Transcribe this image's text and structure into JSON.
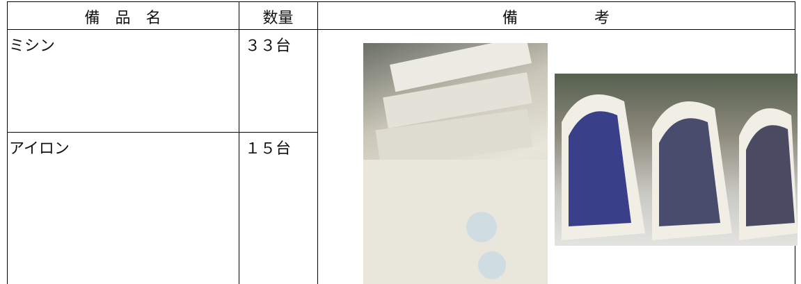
{
  "table": {
    "header": [
      "備　品　名",
      "数量",
      "備　　　　　考"
    ],
    "rows": [
      [
        "ミシン",
        "３３台"
      ],
      [
        "アイロン",
        "１５台"
      ]
    ]
  }
}
